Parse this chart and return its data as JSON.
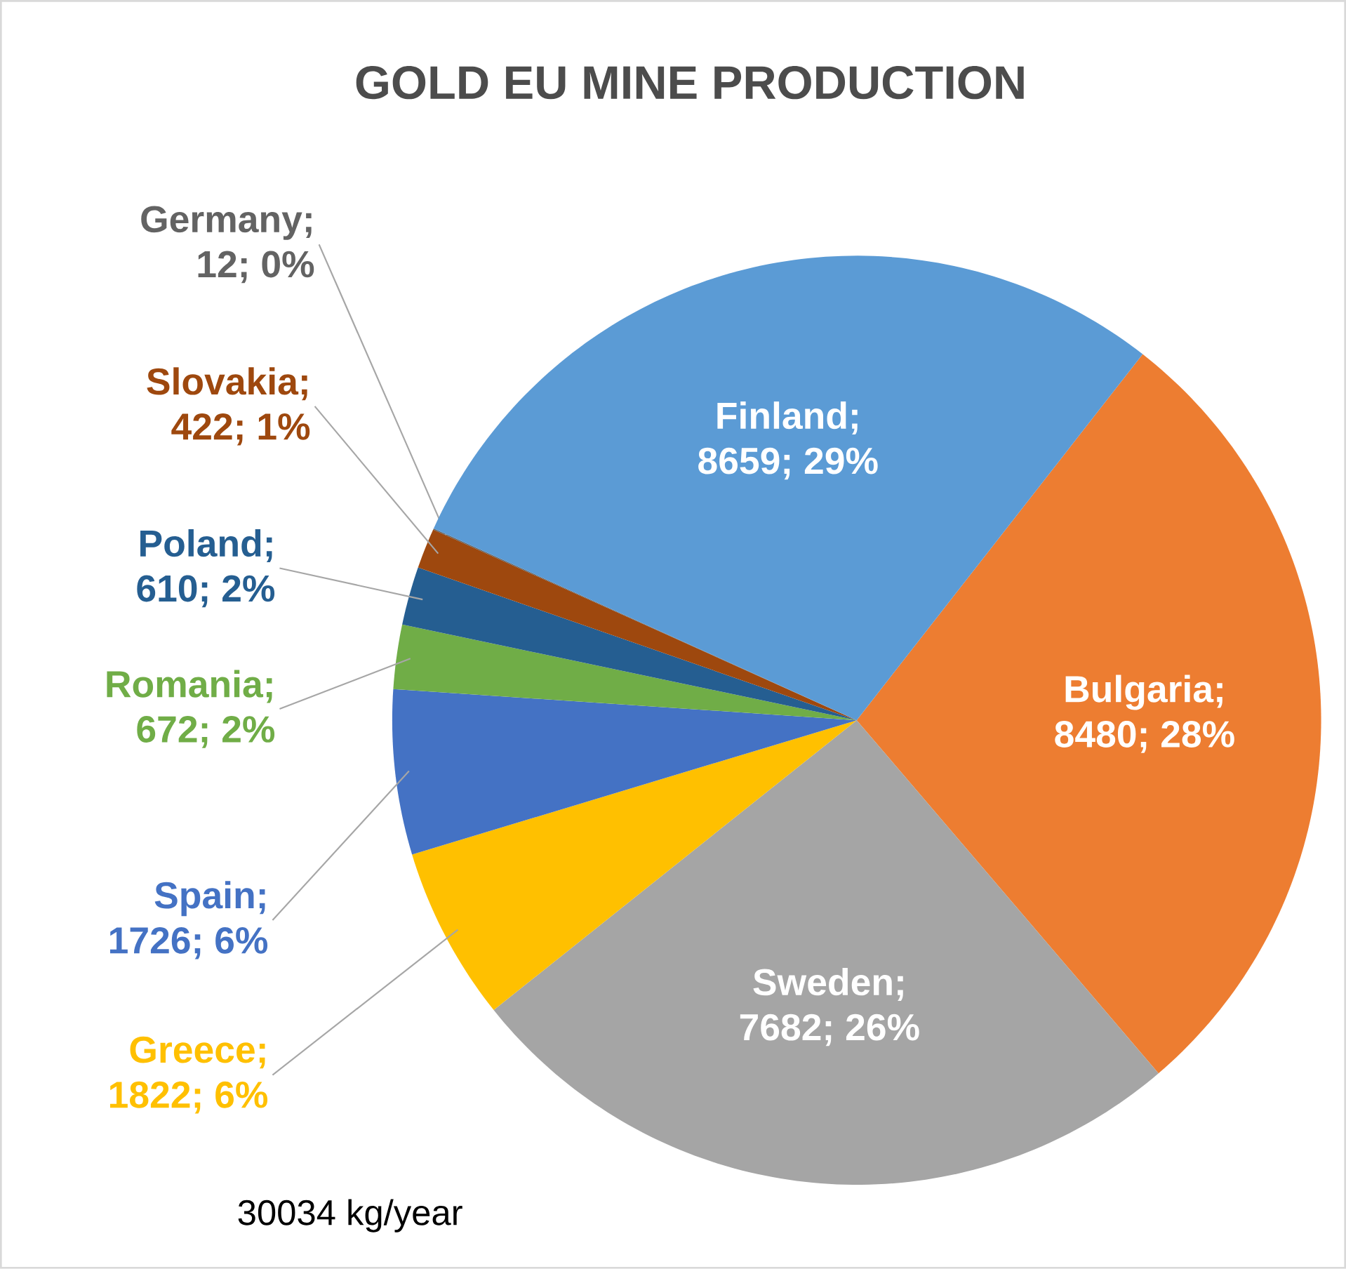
{
  "chart_data": {
    "type": "pie",
    "title": "GOLD EU MINE PRODUCTION",
    "categories": [
      "Bulgaria",
      "Sweden",
      "Greece",
      "Spain",
      "Romania",
      "Poland",
      "Slovakia",
      "Germany",
      "Finland"
    ],
    "values": [
      8480,
      7682,
      1822,
      1726,
      672,
      610,
      422,
      12,
      8659
    ],
    "value_labels": [
      "; 8480; 28%",
      "; 7682; 26%",
      "; 1822; 6%",
      "; 1726; 6%",
      "; 672; 2%",
      "; 610; 2%",
      "; 422; 1%",
      "; 12; 0%",
      "; 8659; 29%"
    ],
    "colors": [
      "#ed7d31",
      "#a5a5a5",
      "#ffc000",
      "#4472c4",
      "#70ad47",
      "#255e91",
      "#9e480e",
      "#636363",
      "#5b9bd5"
    ],
    "annotations": [
      "30034 kg/year"
    ]
  }
}
